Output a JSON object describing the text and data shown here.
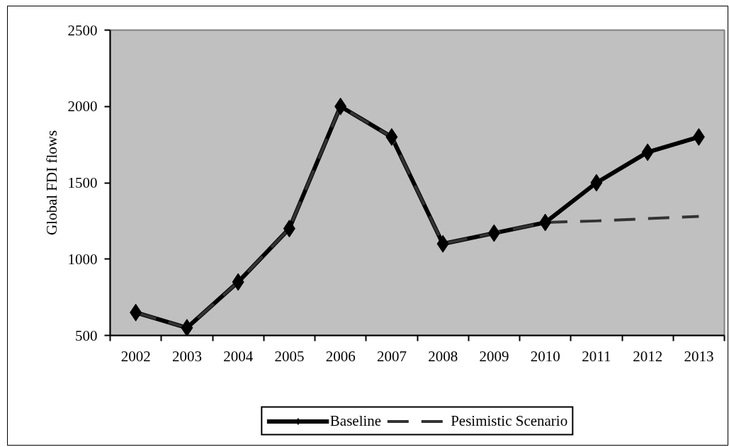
{
  "chart_data": {
    "type": "line",
    "ylabel": "Global FDI flows",
    "categories": [
      "2002",
      "2003",
      "2004",
      "2005",
      "2006",
      "2007",
      "2008",
      "2009",
      "2010",
      "2011",
      "2012",
      "2013"
    ],
    "ylim": [
      500,
      2500
    ],
    "yticks": [
      500,
      1000,
      1500,
      2000,
      2500
    ],
    "grid": false,
    "legend": "bottom",
    "series": [
      {
        "name": "Baseline",
        "color": "#000000",
        "marker": "diamond",
        "line_style": "solid",
        "values": [
          650,
          550,
          850,
          1200,
          2000,
          1800,
          1100,
          1170,
          1240,
          1500,
          1700,
          1800
        ]
      },
      {
        "name": "Pesimistic Scenario",
        "color": "#333333",
        "marker": "none",
        "line_style": "dashed",
        "values": [
          650,
          550,
          850,
          1200,
          2000,
          1800,
          1100,
          1170,
          1240,
          1250,
          1265,
          1280
        ]
      }
    ]
  }
}
